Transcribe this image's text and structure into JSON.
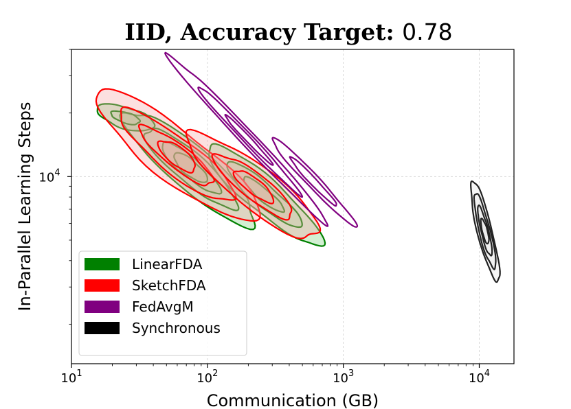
{
  "chart_data": {
    "type": "contour",
    "title_prefix": "IID, Accuracy Target: ",
    "title_value": "0.78",
    "xlabel": "Communication (GB)",
    "ylabel": "In-Parallel Learning Steps",
    "xscale": "log",
    "yscale": "log",
    "xlim": [
      10,
      18000
    ],
    "ylim": [
      1300,
      40000
    ],
    "x_ticks": [
      {
        "value": 10,
        "base": "10",
        "exp": "1"
      },
      {
        "value": 100,
        "base": "10",
        "exp": "2"
      },
      {
        "value": 1000,
        "base": "10",
        "exp": "3"
      },
      {
        "value": 10000,
        "base": "10",
        "exp": "4"
      }
    ],
    "y_ticks": [
      {
        "value": 10000,
        "base": "10",
        "exp": "4"
      }
    ],
    "grid": true,
    "legend_position": "lower-left",
    "series": [
      {
        "name": "LinearFDA",
        "color": "#008000",
        "fill": "#7fd07f",
        "regions": [
          {
            "center": [
              75,
              11000
            ],
            "axes_decades": [
              0.62,
              0.1
            ],
            "slope": -0.55,
            "levels": [
              1.0,
              0.7,
              0.45,
              0.25
            ]
          },
          {
            "center": [
              260,
              8200
            ],
            "axes_decades": [
              0.55,
              0.08
            ],
            "slope": -0.55,
            "levels": [
              1.0,
              0.65,
              0.35
            ]
          },
          {
            "center": [
              25,
              19000
            ],
            "axes_decades": [
              0.22,
              0.05
            ],
            "slope": -0.2,
            "levels": [
              1.0,
              0.5
            ]
          }
        ]
      },
      {
        "name": "SketchFDA",
        "color": "#ff0000",
        "fill": "#f5a5a5",
        "regions": [
          {
            "center": [
              60,
              12500
            ],
            "axes_decades": [
              0.75,
              0.12
            ],
            "slope": -0.5,
            "levels": [
              1.0,
              0.7,
              0.45,
              0.22
            ]
          },
          {
            "center": [
              220,
              9000
            ],
            "axes_decades": [
              0.6,
              0.1
            ],
            "slope": -0.5,
            "levels": [
              1.0,
              0.6,
              0.3
            ]
          }
        ]
      },
      {
        "name": "FedAvgM",
        "color": "#800080",
        "fill": "none",
        "regions": [
          {
            "center": [
              200,
              15000
            ],
            "axes_decades": [
              0.85,
              0.035
            ],
            "slope": -0.68,
            "levels": [
              1.0,
              0.65,
              0.3
            ]
          },
          {
            "center": [
              600,
              9500
            ],
            "axes_decades": [
              0.45,
              0.03
            ],
            "slope": -0.68,
            "levels": [
              1.0,
              0.55
            ]
          }
        ]
      },
      {
        "name": "Synchronous",
        "color": "#222222",
        "fill": "#e6e6e6",
        "regions": [
          {
            "center": [
              11000,
              5500
            ],
            "axes_decades": [
              0.38,
              0.035
            ],
            "slope": -2.6,
            "levels": [
              1.0,
              0.75,
              0.5,
              0.25
            ]
          }
        ]
      }
    ]
  },
  "legend": {
    "items": [
      {
        "label": "LinearFDA",
        "color": "#008000"
      },
      {
        "label": "SketchFDA",
        "color": "#ff0000"
      },
      {
        "label": "FedAvgM",
        "color": "#800080"
      },
      {
        "label": "Synchronous",
        "color": "#000000"
      }
    ]
  }
}
